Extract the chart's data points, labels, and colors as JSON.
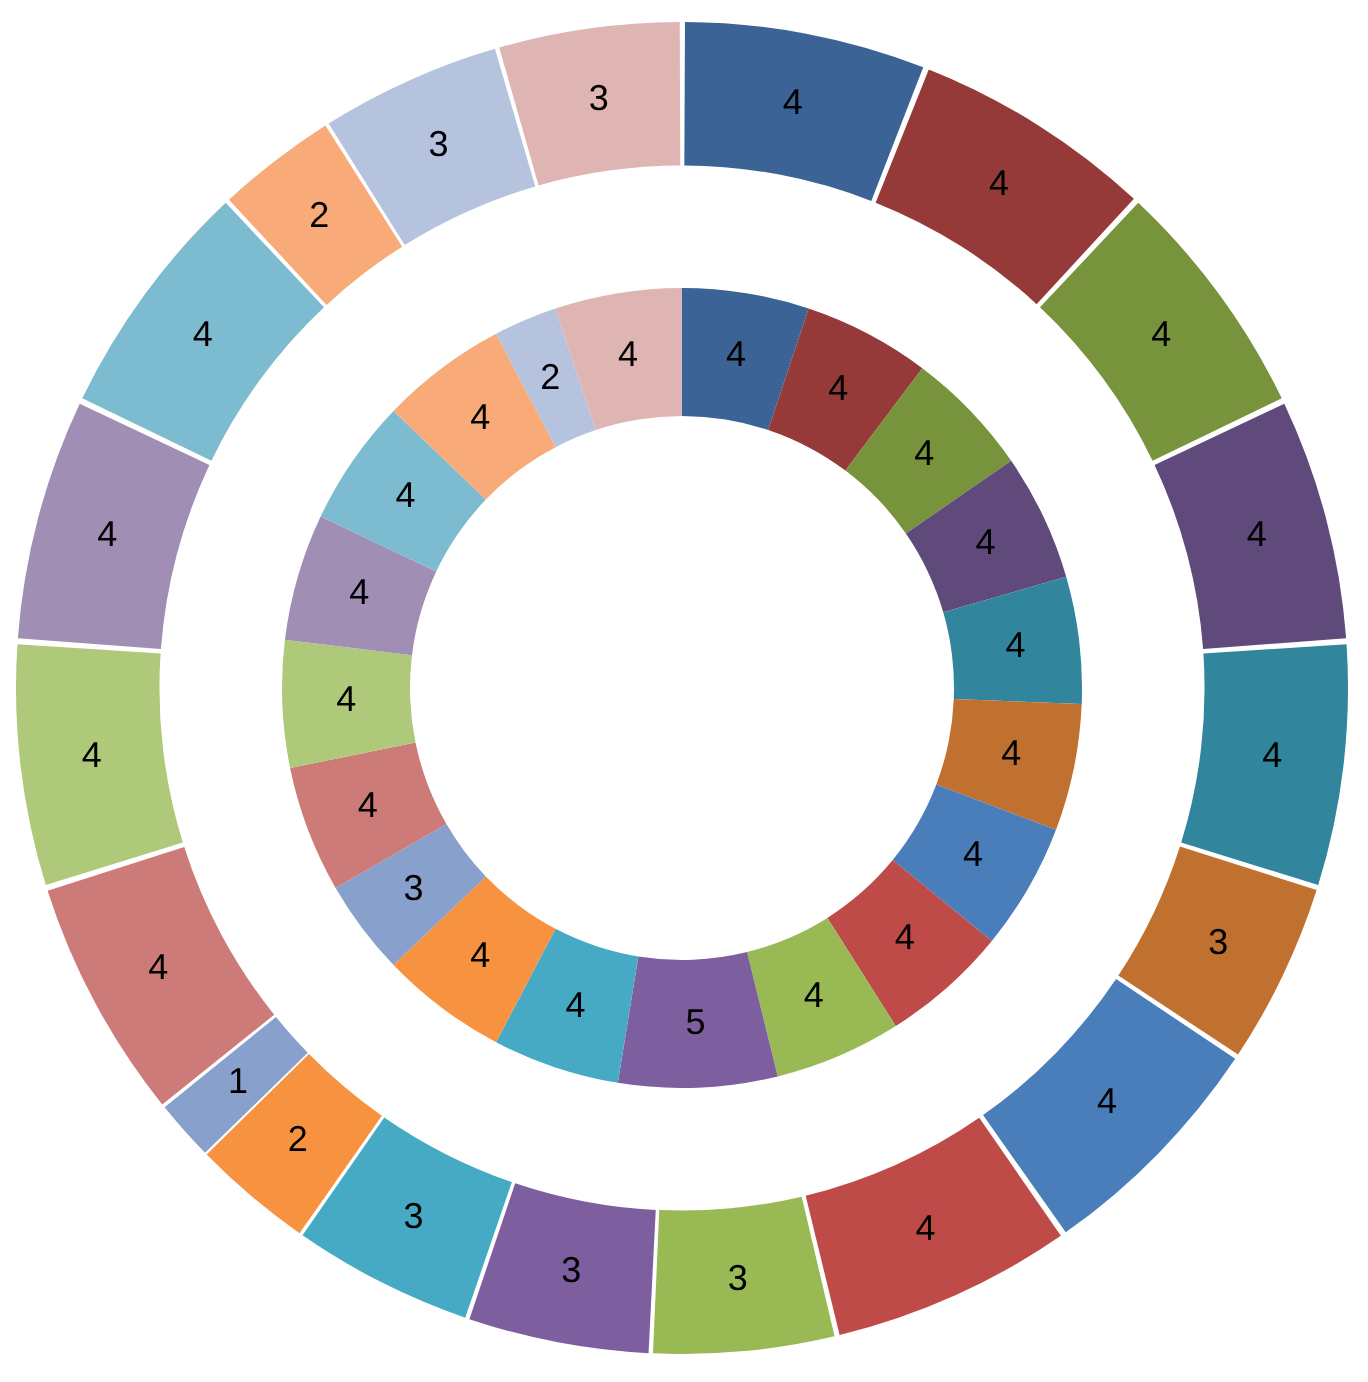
{
  "chart_data": {
    "type": "donut",
    "categories": [
      null,
      null,
      null,
      null,
      null,
      null,
      null,
      null,
      null,
      null,
      null,
      null,
      null,
      null,
      null,
      null,
      null,
      null,
      null,
      null
    ],
    "data_labels": true,
    "legend": false,
    "series": [
      {
        "values": [
          4,
          4,
          4,
          4,
          4,
          3,
          4,
          4,
          3,
          3,
          3,
          2,
          1,
          4,
          4,
          4,
          4,
          2,
          3,
          3
        ],
        "colors": [
          "#3c6395",
          "#953a39",
          "#77933c",
          "#5f4a7b",
          "#31859c",
          "#c0712f",
          "#4a7ebb",
          "#be4b48",
          "#98b954",
          "#7d5fa0",
          "#46aac5",
          "#f69240",
          "#87a0cc",
          "#cc7b79",
          "#afc97a",
          "#a08eb5",
          "#7dbbd0",
          "#f8ab78",
          "#b5c3df",
          "#dfb5b4"
        ]
      },
      {
        "values": [
          4,
          4,
          4,
          4,
          4,
          4,
          4,
          4,
          4,
          5,
          4,
          4,
          3,
          4,
          4,
          4,
          4,
          4,
          2,
          4
        ],
        "colors": [
          "#3c6395",
          "#953a39",
          "#77933c",
          "#5f4a7b",
          "#31859c",
          "#c0712f",
          "#4a7ebb",
          "#be4b48",
          "#98b954",
          "#7d5fa0",
          "#46aac5",
          "#f69240",
          "#87a0cc",
          "#cc7b79",
          "#afc97a",
          "#a08eb5",
          "#7dbbd0",
          "#f8ab78",
          "#b5c3df",
          "#dfb5b4"
        ]
      }
    ]
  }
}
